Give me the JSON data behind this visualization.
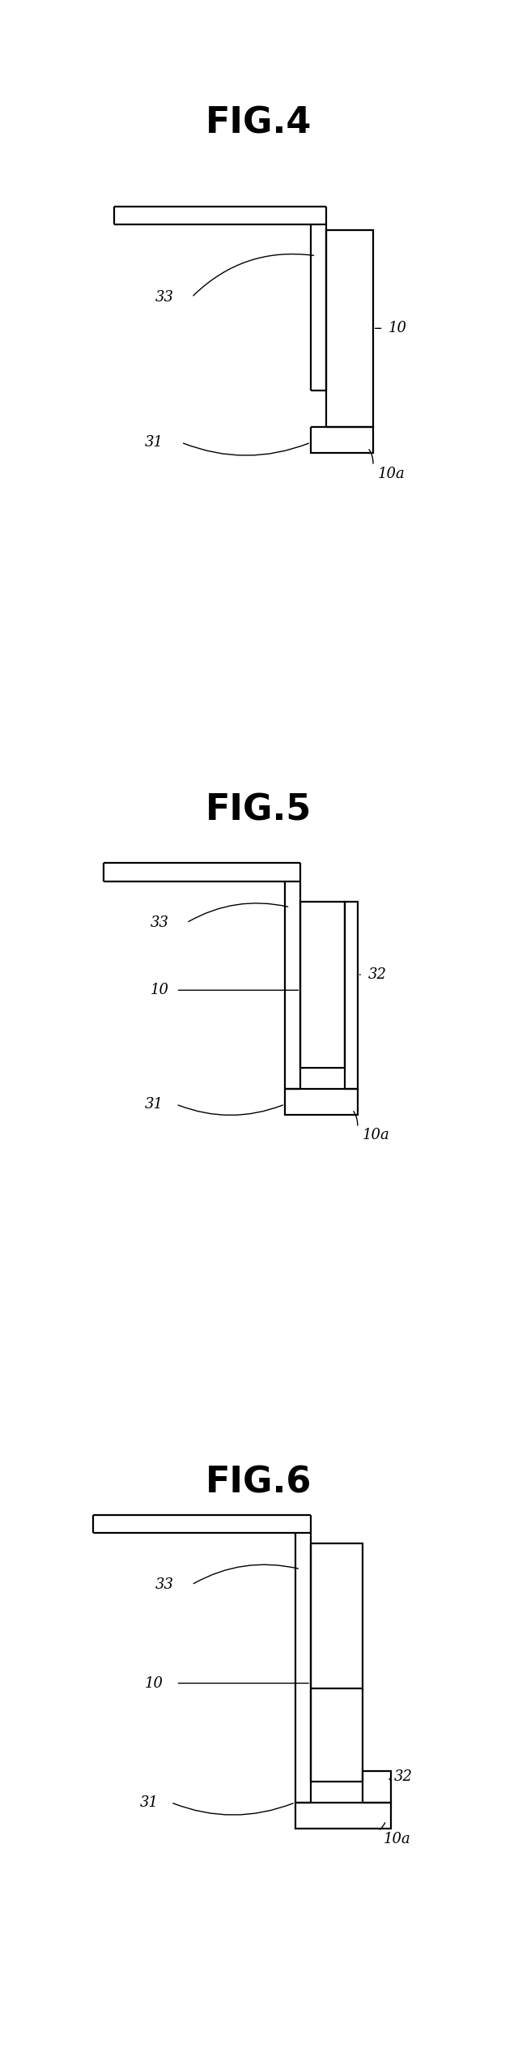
{
  "fig_titles": [
    "FIG.4",
    "FIG.5",
    "FIG.6"
  ],
  "bg_color": "#ffffff",
  "line_color": "#000000",
  "title_fontsize": 32,
  "label_fontsize": 13,
  "fig_width": 6.4,
  "fig_height": 25.34
}
